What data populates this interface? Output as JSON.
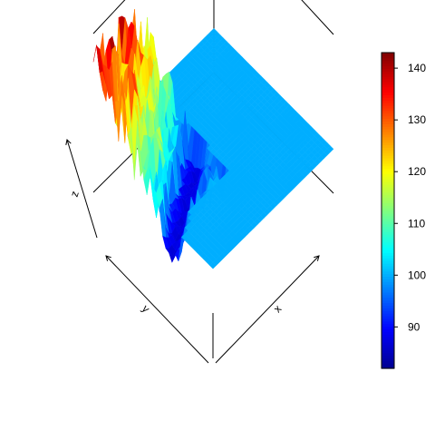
{
  "chart_data": {
    "type": "surface3d",
    "title": "",
    "axes": {
      "x_label": "x",
      "y_label": "y",
      "z_label": "z"
    },
    "colorbar": {
      "min": 82,
      "max": 143,
      "ticks": [
        "90",
        "100",
        "110",
        "120",
        "130",
        "140"
      ],
      "tick_values": [
        90,
        100,
        110,
        120,
        130,
        140
      ],
      "colormap": [
        "#00008f",
        "#0000ff",
        "#0080ff",
        "#00ffff",
        "#80ff80",
        "#ffff00",
        "#ff8000",
        "#ff0000",
        "#800000"
      ]
    },
    "surface": {
      "grid_x": 38,
      "grid_y": 38,
      "plateau_value": 100,
      "min_value": 82,
      "max_value": 143,
      "description_color_plateau": "#00b0ff"
    }
  }
}
